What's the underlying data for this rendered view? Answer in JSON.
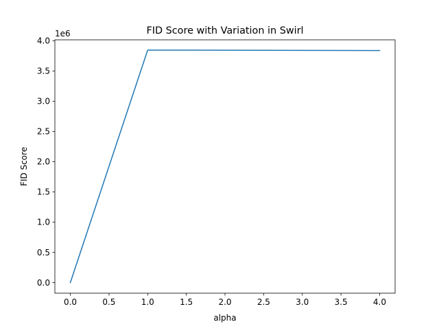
{
  "chart_data": {
    "type": "line",
    "title": "FID Score with Variation in Swirl",
    "xlabel": "alpha",
    "ylabel": "FID Score",
    "offset_label": "1e6",
    "xlim": [
      -0.2,
      4.2
    ],
    "ylim": [
      -175000,
      4015000
    ],
    "x_ticks": [
      0.0,
      0.5,
      1.0,
      1.5,
      2.0,
      2.5,
      3.0,
      3.5,
      4.0
    ],
    "x_tick_labels": [
      "0.0",
      "0.5",
      "1.0",
      "1.5",
      "2.0",
      "2.5",
      "3.0",
      "3.5",
      "4.0"
    ],
    "y_ticks": [
      0,
      500000,
      1000000,
      1500000,
      2000000,
      2500000,
      3000000,
      3500000,
      4000000
    ],
    "y_tick_labels": [
      "0.0",
      "0.5",
      "1.0",
      "1.5",
      "2.0",
      "2.5",
      "3.0",
      "3.5",
      "4.0"
    ],
    "grid": false,
    "series": [
      {
        "color": "#1f77b4",
        "x": [
          0,
          1,
          2,
          3,
          4
        ],
        "y": [
          0,
          3845000,
          3843000,
          3840000,
          3838000
        ]
      }
    ]
  }
}
